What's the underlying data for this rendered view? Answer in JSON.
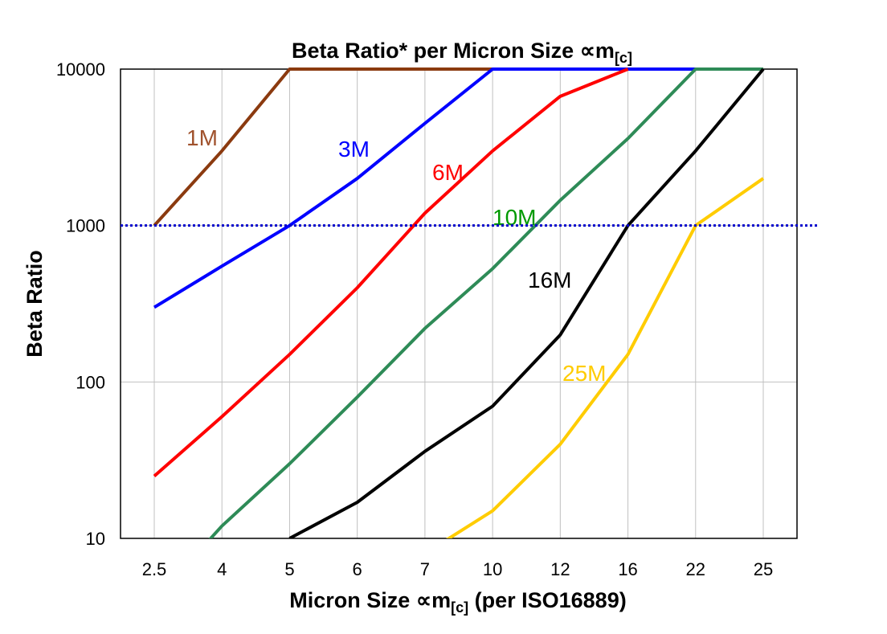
{
  "chart_data": {
    "type": "line",
    "title": "Beta Ratio* per Micron Size ∝m",
    "title_sub": "[c]",
    "xlabel": "Micron Size ∝m",
    "xlabel_sub": "[c]",
    "xlabel_suffix": " (per ISO16889)",
    "ylabel": "Beta Ratio",
    "y_scale": "log",
    "ylim": [
      10,
      10000
    ],
    "y_ticks": [
      "10",
      "100",
      "1000",
      "10000"
    ],
    "categories": [
      "2.5",
      "4",
      "5",
      "6",
      "7",
      "10",
      "12",
      "16",
      "22",
      "25"
    ],
    "grid": true,
    "reference_line": {
      "y": 1000,
      "style": "dotted",
      "color": "#0000CC"
    },
    "series": [
      {
        "name": "1M",
        "color": "#8B3A0F",
        "label_color": "#A0522D",
        "values": [
          1000,
          3000,
          10000,
          10000,
          10000,
          10000,
          null,
          null,
          null,
          null
        ]
      },
      {
        "name": "3M",
        "color": "#0000FF",
        "label_color": "#0000FF",
        "values": [
          300,
          550,
          1000,
          2000,
          4500,
          10000,
          10000,
          10000,
          10000,
          10000
        ]
      },
      {
        "name": "6M",
        "color": "#FF0000",
        "label_color": "#FF0000",
        "values": [
          25,
          60,
          150,
          400,
          1200,
          3000,
          6700,
          10000,
          null,
          null
        ]
      },
      {
        "name": "10M",
        "color": "#2E8B57",
        "label_color": "#009900",
        "values": [
          4,
          12,
          30,
          80,
          220,
          530,
          1450,
          3600,
          10000,
          10000
        ]
      },
      {
        "name": "16M",
        "color": "#000000",
        "label_color": "#000000",
        "values": [
          null,
          null,
          10,
          17,
          36,
          70,
          200,
          1000,
          3000,
          10000
        ]
      },
      {
        "name": "25M",
        "color": "#FFCC00",
        "label_color": "#FFCC00",
        "values": [
          null,
          null,
          null,
          null,
          8,
          15,
          40,
          150,
          1000,
          2000
        ]
      }
    ]
  }
}
